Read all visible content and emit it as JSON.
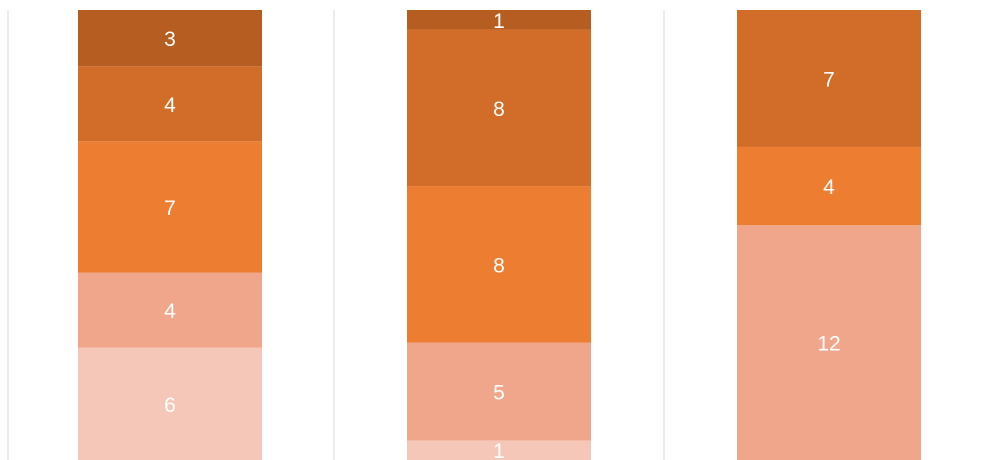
{
  "chart_data": {
    "type": "bar",
    "stacked": true,
    "orientation": "vertical",
    "categories": [
      "",
      "",
      ""
    ],
    "series": [
      {
        "values": [
          6,
          1,
          null
        ],
        "color": "#F5C7B8"
      },
      {
        "values": [
          4,
          5,
          12
        ],
        "color": "#F0A68A"
      },
      {
        "values": [
          7,
          8,
          4
        ],
        "color": "#ED7D31"
      },
      {
        "values": [
          4,
          8,
          7
        ],
        "color": "#D26C29"
      },
      {
        "values": [
          3,
          1,
          null
        ],
        "color": "#B65E22"
      }
    ],
    "data_labels": true,
    "data_label_color": "#FFFFFF",
    "grid": false,
    "legend": "none"
  }
}
